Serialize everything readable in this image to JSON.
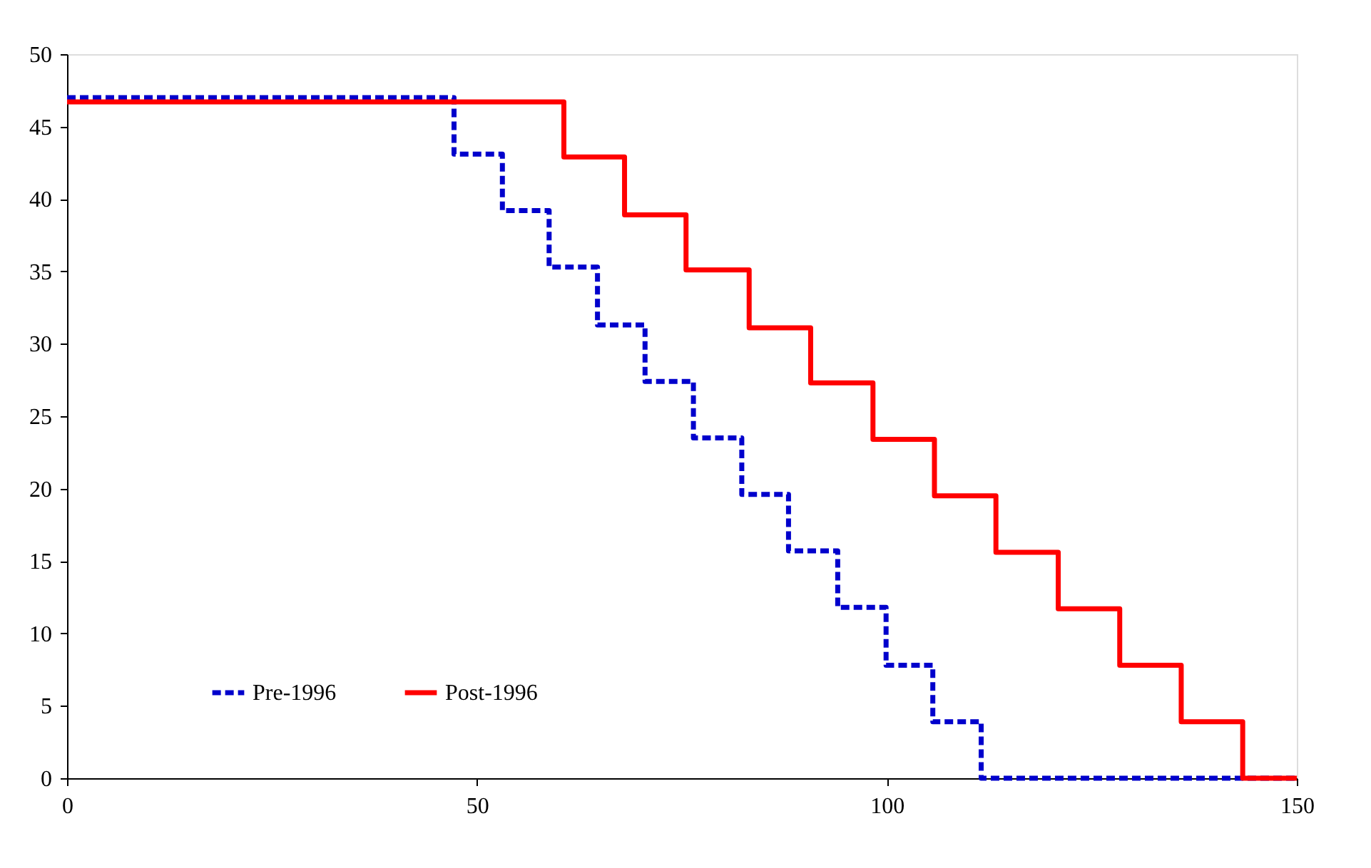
{
  "chart_data": {
    "type": "step",
    "xlim": [
      0,
      150
    ],
    "xticks": [
      0,
      50,
      100,
      150
    ],
    "ylim": [
      0,
      50
    ],
    "yticks": [
      0,
      5,
      10,
      15,
      20,
      25,
      30,
      35,
      40,
      45,
      50
    ],
    "grid": false,
    "legend": "bottom",
    "series": [
      {
        "name": "Pre-1996",
        "color": "#0000cc",
        "line_style": "dashed",
        "x": [
          0,
          47.2,
          53.1,
          58.8,
          64.7,
          70.5,
          76.4,
          82.3,
          88,
          94,
          99.9,
          105.6,
          111.5,
          150
        ],
        "values": [
          47,
          43.1,
          39.2,
          35.3,
          31.3,
          27.4,
          23.5,
          19.6,
          15.7,
          11.8,
          7.8,
          3.9,
          0,
          0
        ]
      },
      {
        "name": "Post-1996",
        "color": "#ff0000",
        "line_style": "solid",
        "x": [
          0,
          60.6,
          68,
          75.5,
          83.2,
          90.7,
          98.3,
          105.8,
          113.3,
          120.9,
          128.4,
          135.9,
          143.4,
          150
        ],
        "values": [
          46.7,
          42.9,
          38.9,
          35.1,
          31.1,
          27.3,
          23.4,
          19.5,
          15.6,
          11.7,
          7.8,
          3.9,
          0,
          0
        ]
      }
    ]
  }
}
